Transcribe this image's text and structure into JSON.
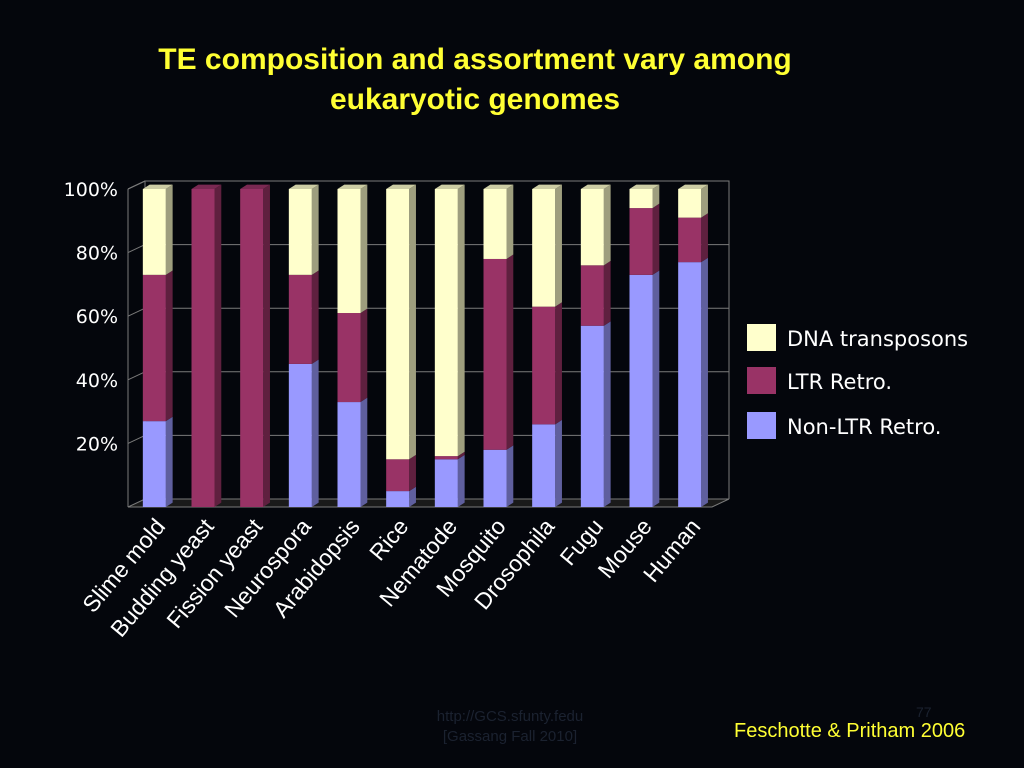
{
  "slide": {
    "title_line1": "TE composition and assortment vary among",
    "title_line2": "eukaryotic genomes",
    "citation": "Feschotte & Pritham 2006",
    "footer_line1": "http://GCS.sfunty.fedu",
    "footer_line2": "[Gassang Fall 2010]",
    "page_number": "77"
  },
  "colors": {
    "background": "#04060c",
    "title": "#ffff33",
    "dna_transposons": "#ffffcc",
    "ltr_retro": "#993366",
    "non_ltr_retro": "#9999ff",
    "grid": "#7a7a7a"
  },
  "chart_data": {
    "type": "bar",
    "stacked": true,
    "percent_axis": true,
    "title": "TE composition and assortment vary among eukaryotic genomes",
    "xlabel": "",
    "ylabel": "",
    "ylim": [
      0,
      100
    ],
    "y_ticks": [
      "20%",
      "40%",
      "60%",
      "80%",
      "100%"
    ],
    "grid": true,
    "legend_position": "right",
    "categories": [
      "Slime mold",
      "Budding yeast",
      "Fission yeast",
      "Neurospora",
      "Arabidopsis",
      "Rice",
      "Nematode",
      "Mosquito",
      "Drosophila",
      "Fugu",
      "Mouse",
      "Human"
    ],
    "series": [
      {
        "name": "Non-LTR Retro.",
        "color": "#9999ff",
        "values": [
          27,
          0,
          0,
          45,
          33,
          5,
          15,
          18,
          26,
          57,
          73,
          77
        ]
      },
      {
        "name": "LTR Retro.",
        "color": "#993366",
        "values": [
          46,
          100,
          100,
          28,
          28,
          10,
          1,
          60,
          37,
          19,
          21,
          14
        ]
      },
      {
        "name": "DNA transposons",
        "color": "#ffffcc",
        "values": [
          27,
          0,
          0,
          27,
          39,
          85,
          84,
          22,
          37,
          24,
          6,
          9
        ]
      }
    ],
    "legend": [
      {
        "name": "DNA transposons",
        "color": "#ffffcc"
      },
      {
        "name": "LTR Retro.",
        "color": "#993366"
      },
      {
        "name": "Non-LTR Retro.",
        "color": "#9999ff"
      }
    ]
  }
}
